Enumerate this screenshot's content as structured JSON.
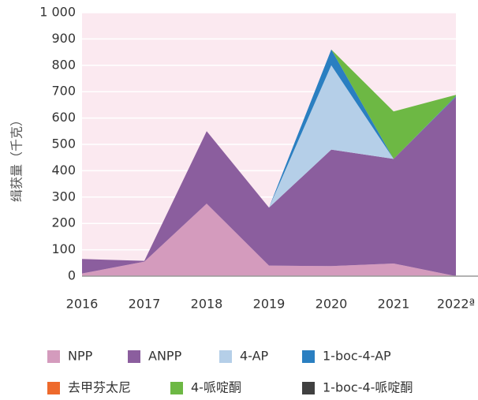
{
  "chart_data": {
    "type": "stacked_area",
    "y_label": "缉获量（千克）",
    "categories": [
      "2016",
      "2017",
      "2018",
      "2019",
      "2020",
      "2021",
      "2022ª"
    ],
    "series": [
      {
        "name": "NPP",
        "color": "#d49bbd",
        "values": [
          10,
          55,
          275,
          40,
          38,
          48,
          0
        ]
      },
      {
        "name": "ANPP",
        "color": "#8b5e9e",
        "values": [
          55,
          3,
          275,
          220,
          442,
          397,
          680
        ]
      },
      {
        "name": "4-AP",
        "color": "#b5cfe8",
        "values": [
          0,
          0,
          0,
          0,
          320,
          0,
          0
        ]
      },
      {
        "name": "1-boc-4-AP",
        "color": "#2a7fc1",
        "values": [
          0,
          0,
          0,
          0,
          60,
          0,
          3
        ]
      },
      {
        "name": "去甲芬太尼",
        "color": "#ee6a2c",
        "values": [
          0,
          0,
          0,
          0,
          0,
          0,
          0
        ]
      },
      {
        "name": "4-哌啶酮",
        "color": "#6db844",
        "values": [
          0,
          0,
          0,
          0,
          0,
          180,
          5
        ]
      },
      {
        "name": "1-boc-4-哌啶酮",
        "color": "#404040",
        "values": [
          0,
          0,
          0,
          0,
          0,
          0,
          0
        ]
      }
    ],
    "ylim": [
      0,
      1000
    ],
    "yticks": [
      0,
      100,
      200,
      300,
      400,
      500,
      600,
      700,
      800,
      900,
      {
        "value": 1000,
        "label": "1 000"
      }
    ],
    "grid": true
  }
}
